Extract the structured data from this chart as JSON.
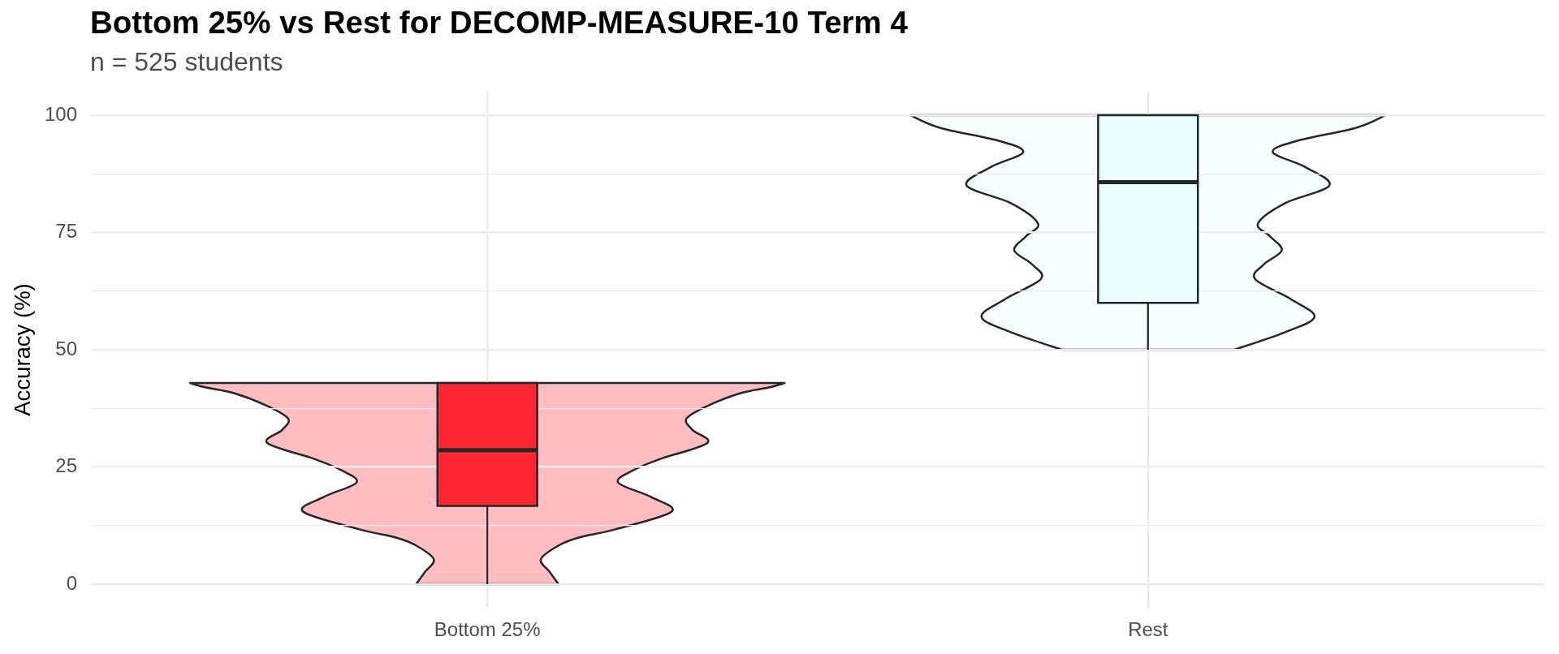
{
  "chart_data": {
    "type": "box",
    "title": "Bottom 25% vs Rest for DECOMP-MEASURE-10 Term 4",
    "subtitle": "n = 525 students",
    "ylabel": "Accuracy (%)",
    "categories": [
      "Bottom 25%",
      "Rest"
    ],
    "colors": [
      "#fc2733",
      "#eaffff"
    ],
    "boxes": [
      {
        "low": 0,
        "q1": 16.7,
        "median": 28.6,
        "q3": 42.9,
        "high": 42.9
      },
      {
        "low": 50,
        "q1": 60,
        "median": 85.7,
        "q3": 100,
        "high": 100
      }
    ],
    "ylim": [
      -5,
      105
    ],
    "yticks": [
      0,
      {
        "value": 12.5,
        "label": null
      },
      25,
      {
        "value": 37.5,
        "label": null
      },
      50,
      {
        "value": 62.5,
        "label": null
      },
      75,
      {
        "value": 87.5,
        "label": null
      },
      100
    ],
    "grid": true
  }
}
